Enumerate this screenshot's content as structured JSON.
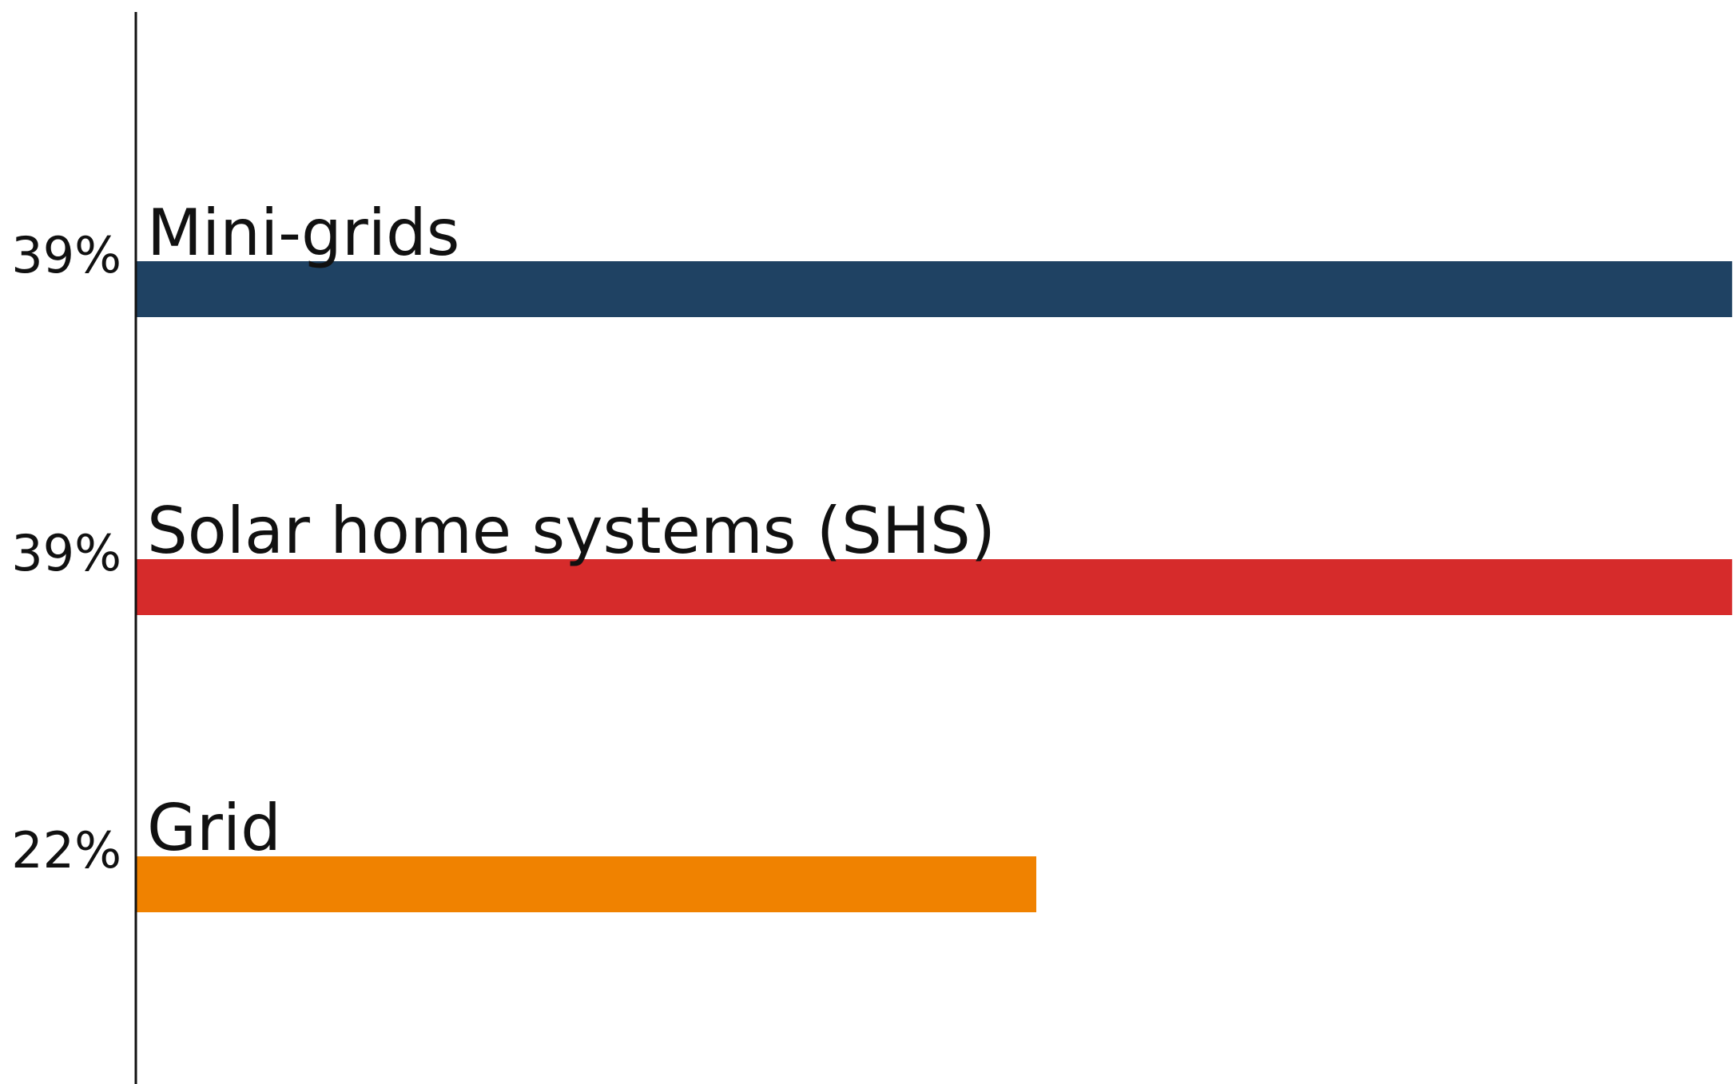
{
  "chart_data": {
    "type": "bar",
    "orientation": "horizontal",
    "categories": [
      "Mini-grids",
      "Solar home systems (SHS)",
      "Grid"
    ],
    "values": [
      39,
      39,
      22
    ],
    "value_labels": [
      "39%",
      "39%",
      "22%"
    ],
    "colors": [
      "#1f4263",
      "#d62b2b",
      "#f08200"
    ],
    "axis_color": "#111111",
    "grid": false,
    "legend": "none"
  }
}
